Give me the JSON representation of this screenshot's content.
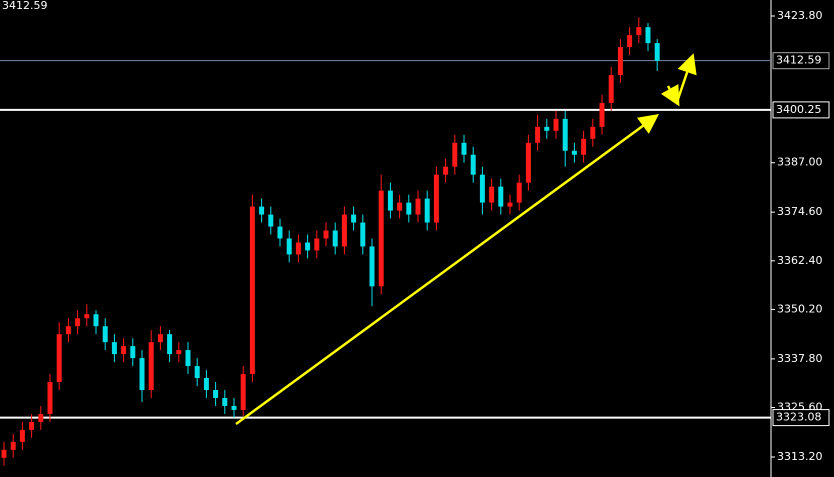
{
  "chart_data": {
    "type": "candlestick",
    "current_price": 3412.59,
    "up_color": "#ff1a1a",
    "down_color": "#00e0e8",
    "open": [
      3313,
      3315,
      3317,
      3320,
      3322,
      3324,
      3332,
      3344,
      3346,
      3348,
      3349,
      3346,
      3342,
      3339,
      3341,
      3338,
      3330,
      3342,
      3344,
      3339,
      3340,
      3336,
      3333,
      3330,
      3328,
      3326,
      3325,
      3334,
      3376,
      3374,
      3371,
      3368,
      3364,
      3367,
      3365,
      3368,
      3370,
      3366,
      3374,
      3372,
      3366,
      3356,
      3380,
      3375,
      3377,
      3374,
      3378,
      3372,
      3384,
      3386,
      3392,
      3389,
      3384,
      3377,
      3381,
      3376,
      3377,
      3382,
      3392,
      3396,
      3395,
      3398,
      3390,
      3389,
      3393,
      3396,
      3402,
      3409,
      3416,
      3419,
      3421,
      3417
    ],
    "high": [
      3317,
      3319,
      3322,
      3324,
      3326,
      3334,
      3347,
      3348,
      3350,
      3351.5,
      3350,
      3348,
      3344,
      3343,
      3343,
      3340,
      3345,
      3346,
      3345,
      3342,
      3342,
      3338,
      3335,
      3332,
      3330,
      3328,
      3336,
      3379,
      3378,
      3376,
      3373,
      3370,
      3369,
      3369,
      3370,
      3372,
      3372,
      3376,
      3376,
      3374,
      3368,
      3384,
      3382,
      3379,
      3379,
      3380,
      3380,
      3386,
      3388,
      3394,
      3394,
      3391,
      3386,
      3383,
      3383,
      3379,
      3384,
      3394,
      3399,
      3398,
      3400,
      3400,
      3392,
      3395,
      3398,
      3404,
      3411,
      3418,
      3421,
      3423.5,
      3422,
      3418
    ],
    "low": [
      3311,
      3313,
      3315,
      3318,
      3320,
      3322,
      3330,
      3342,
      3344,
      3346,
      3344,
      3340,
      3337,
      3337,
      3336,
      3327,
      3328,
      3340,
      3337,
      3337,
      3334,
      3331,
      3328,
      3326,
      3324,
      3323.1,
      3323.5,
      3332,
      3372,
      3369,
      3366,
      3362,
      3362,
      3363,
      3363,
      3366,
      3364,
      3364,
      3370,
      3364,
      3351,
      3354,
      3373,
      3373,
      3372,
      3372,
      3370,
      3370,
      3382,
      3384,
      3387,
      3382,
      3374,
      3375,
      3374,
      3374,
      3375,
      3380,
      3390,
      3393,
      3393,
      3386,
      3387,
      3387,
      3391,
      3394,
      3400,
      3407,
      3414,
      3417,
      3415,
      3410
    ],
    "close": [
      3315,
      3317,
      3320,
      3322,
      3324,
      3332,
      3344,
      3346,
      3348,
      3349,
      3346,
      3342,
      3339,
      3341,
      3338,
      3330,
      3342,
      3344,
      3339,
      3340,
      3336,
      3333,
      3330,
      3328,
      3326,
      3325,
      3334,
      3376,
      3374,
      3371,
      3368,
      3364,
      3367,
      3365,
      3368,
      3370,
      3366,
      3374,
      3372,
      3366,
      3356,
      3380,
      3375,
      3377,
      3374,
      3378,
      3372,
      3384,
      3386,
      3392,
      3389,
      3384,
      3377,
      3381,
      3376,
      3377,
      3382,
      3392,
      3396,
      3395,
      3398,
      3390,
      3389,
      3393,
      3396,
      3402,
      3409,
      3416,
      3419,
      3421,
      3417,
      3412.59
    ],
    "ylim": [
      3308.18,
      3427.81
    ],
    "yticks": [
      {
        "value": 3313.2,
        "label": "3313.20"
      },
      {
        "value": 3325.6,
        "label": "3325.60"
      },
      {
        "value": 3337.8,
        "label": "3337.80"
      },
      {
        "value": 3350.2,
        "label": "3350.20"
      },
      {
        "value": 3362.4,
        "label": "3362.40"
      },
      {
        "value": 3374.6,
        "label": "3374.60"
      },
      {
        "value": 3387,
        "label": "3387.00"
      },
      {
        "value": 3423.8,
        "label": "3423.80"
      }
    ],
    "price_lines": [
      {
        "value": 3412.59,
        "color": "#7888a8"
      },
      {
        "value": 3400.25,
        "color": "#ffffff"
      },
      {
        "value": 3323.08,
        "color": "#ffffff"
      }
    ]
  }
}
